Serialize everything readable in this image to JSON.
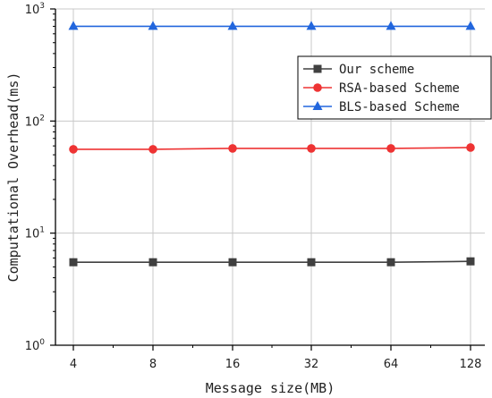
{
  "chart_data": {
    "type": "line",
    "xlabel": "Message size(MB)",
    "ylabel": "Computational Overhead(ms)",
    "x_scale": "categorical",
    "y_scale": "log",
    "ylim": [
      1,
      1000
    ],
    "grid": true,
    "legend_position": "top-right",
    "categories": [
      "4",
      "8",
      "16",
      "32",
      "64",
      "128"
    ],
    "y_ticks": [
      {
        "base": "10",
        "exp": "0"
      },
      {
        "base": "10",
        "exp": "1"
      },
      {
        "base": "10",
        "exp": "2"
      },
      {
        "base": "10",
        "exp": "3"
      }
    ],
    "series": [
      {
        "name": "Our scheme",
        "color": "#404040",
        "marker": "square",
        "values": [
          5.5,
          5.5,
          5.5,
          5.5,
          5.5,
          5.6
        ]
      },
      {
        "name": "RSA-based Scheme",
        "color": "#ee3333",
        "marker": "circle",
        "values": [
          56,
          56,
          57,
          57,
          57,
          58
        ]
      },
      {
        "name": "BLS-based Scheme",
        "color": "#2266dd",
        "marker": "triangle",
        "values": [
          700,
          700,
          700,
          700,
          700,
          700
        ]
      }
    ]
  }
}
